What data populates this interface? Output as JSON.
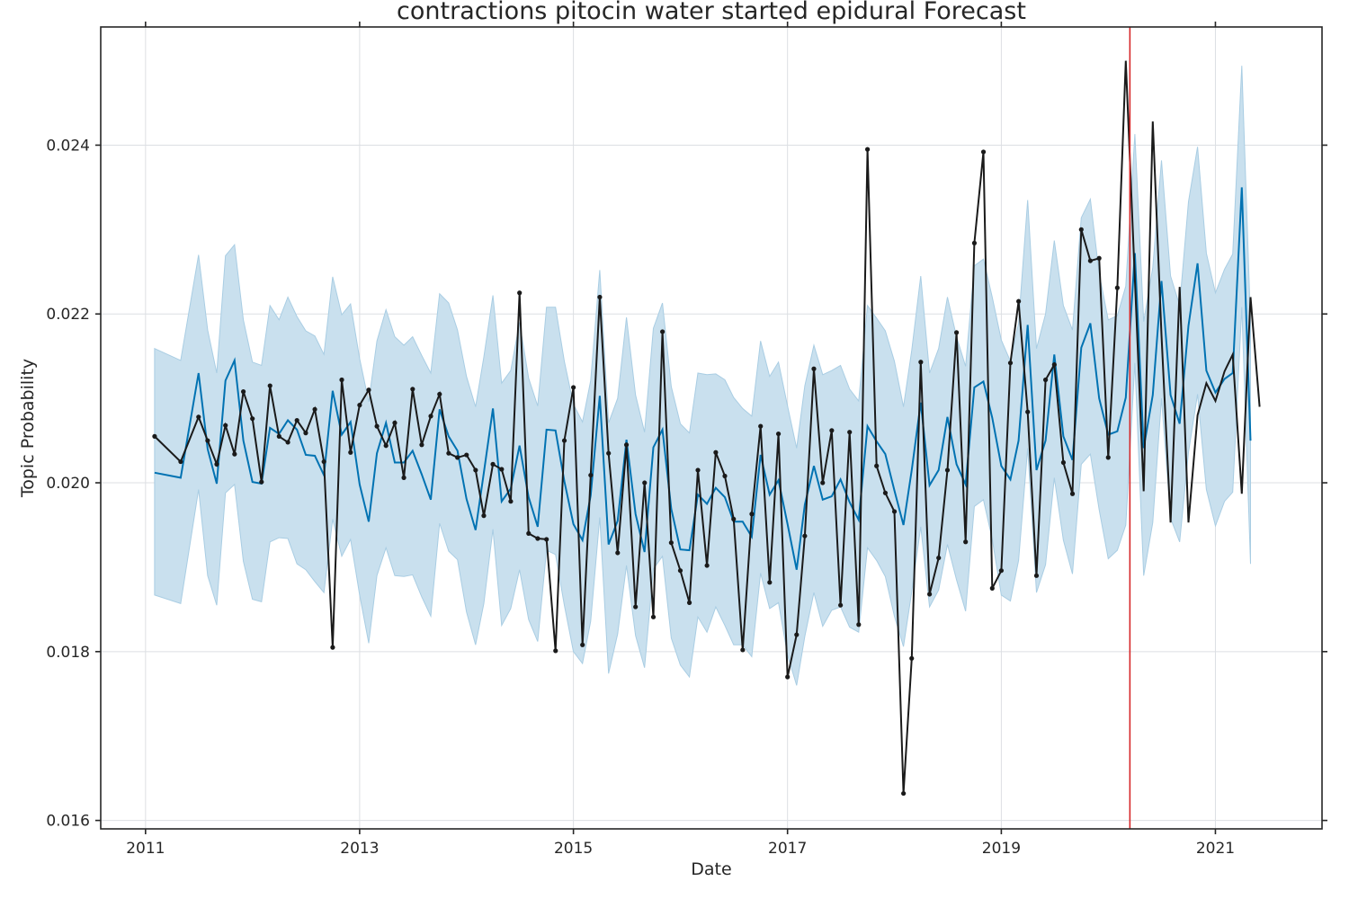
{
  "chart_data": {
    "type": "line",
    "title": "contractions pitocin water started epidural Forecast",
    "xlabel": "Date",
    "ylabel": "Topic Probability",
    "xlim": [
      "2010-08-01",
      "2021-12-31"
    ],
    "ylim": [
      0.0159,
      0.0254
    ],
    "x_ticks": [
      "2011",
      "2013",
      "2015",
      "2017",
      "2019",
      "2021"
    ],
    "y_ticks": [
      "0.016",
      "0.018",
      "0.020",
      "0.022",
      "0.024"
    ],
    "y_tick_values": [
      0.016,
      0.018,
      0.02,
      0.022,
      0.024
    ],
    "grid": true,
    "cutoff_date": "2020-03-15",
    "colors": {
      "actual": "#1a1a1a",
      "forecast": "#0072b2",
      "band": "#c9e0ee",
      "band_edge": "#a9cde3",
      "cutoff": "#d62728"
    },
    "actual": {
      "name": "actual",
      "x": [
        "2011-02-01",
        "2011-05-01",
        "2011-07-01",
        "2011-08-01",
        "2011-09-01",
        "2011-10-01",
        "2011-11-01",
        "2011-12-01",
        "2012-01-01",
        "2012-02-01",
        "2012-03-01",
        "2012-04-01",
        "2012-05-01",
        "2012-06-01",
        "2012-07-01",
        "2012-08-01",
        "2012-09-01",
        "2012-10-01",
        "2012-11-01",
        "2012-12-01",
        "2013-01-01",
        "2013-02-01",
        "2013-03-01",
        "2013-04-01",
        "2013-05-01",
        "2013-06-01",
        "2013-07-01",
        "2013-08-01",
        "2013-09-01",
        "2013-10-01",
        "2013-11-01",
        "2013-12-01",
        "2014-01-01",
        "2014-02-01",
        "2014-03-01",
        "2014-04-01",
        "2014-05-01",
        "2014-06-01",
        "2014-07-01",
        "2014-08-01",
        "2014-09-01",
        "2014-10-01",
        "2014-11-01",
        "2014-12-01",
        "2015-01-01",
        "2015-02-01",
        "2015-03-01",
        "2015-04-01",
        "2015-05-01",
        "2015-06-01",
        "2015-07-01",
        "2015-08-01",
        "2015-09-01",
        "2015-10-01",
        "2015-11-01",
        "2015-12-01",
        "2016-01-01",
        "2016-02-01",
        "2016-03-01",
        "2016-04-01",
        "2016-05-01",
        "2016-06-01",
        "2016-07-01",
        "2016-08-01",
        "2016-09-01",
        "2016-10-01",
        "2016-11-01",
        "2016-12-01",
        "2017-01-01",
        "2017-02-01",
        "2017-03-01",
        "2017-04-01",
        "2017-05-01",
        "2017-06-01",
        "2017-07-01",
        "2017-08-01",
        "2017-09-01",
        "2017-10-01",
        "2017-11-01",
        "2017-12-01",
        "2018-01-01",
        "2018-02-01",
        "2018-03-01",
        "2018-04-01",
        "2018-05-01",
        "2018-06-01",
        "2018-07-01",
        "2018-08-01",
        "2018-09-01",
        "2018-10-01",
        "2018-11-01",
        "2018-12-01",
        "2019-01-01",
        "2019-02-01",
        "2019-03-01",
        "2019-04-01",
        "2019-05-01",
        "2019-06-01",
        "2019-07-01",
        "2019-08-01",
        "2019-09-01",
        "2019-10-01",
        "2019-11-01",
        "2019-12-01",
        "2020-01-01",
        "2020-02-01"
      ],
      "values": [
        0.02055,
        0.02025,
        0.02078,
        0.0205,
        0.02022,
        0.02068,
        0.02034,
        0.02108,
        0.02076,
        0.02001,
        0.02115,
        0.02055,
        0.02048,
        0.02074,
        0.02059,
        0.02087,
        0.02025,
        0.01805,
        0.02122,
        0.02036,
        0.02092,
        0.0211,
        0.02067,
        0.02044,
        0.02071,
        0.02006,
        0.02111,
        0.02045,
        0.02079,
        0.02105,
        0.02035,
        0.0203,
        0.02033,
        0.02015,
        0.01961,
        0.02022,
        0.02016,
        0.01978,
        0.02225,
        0.0194,
        0.01934,
        0.01933,
        0.01801,
        0.0205,
        0.02113,
        0.01808,
        0.02009,
        0.0222,
        0.02035,
        0.01917,
        0.02045,
        0.01853,
        0.02,
        0.01841,
        0.02179,
        0.01929,
        0.01896,
        0.01858,
        0.02015,
        0.01902,
        0.02036,
        0.02008,
        0.01957,
        0.01802,
        0.01963,
        0.02067,
        0.01882,
        0.02058,
        0.0177,
        0.0182,
        0.01937,
        0.02135,
        0.02,
        0.02062,
        0.01855,
        0.0206,
        0.01832,
        0.02395,
        0.0202,
        0.01988,
        0.01966,
        0.01632,
        0.01792,
        0.02143,
        0.01868,
        0.01911,
        0.02015,
        0.02178,
        0.0193,
        0.02284,
        0.02392,
        0.01875,
        0.01896,
        0.02142,
        0.02215,
        0.02084,
        0.0189,
        0.02122,
        0.0214,
        0.02024,
        0.01987,
        0.023,
        0.02263,
        0.02266,
        0.0203,
        0.02231
      ]
    },
    "actual_tail": {
      "name": "actual",
      "x": [
        "2020-03-01",
        "2020-05-01",
        "2020-06-01",
        "2020-07-01",
        "2020-08-01",
        "2020-09-01",
        "2020-10-01",
        "2020-11-01",
        "2020-12-01",
        "2021-01-01",
        "2021-02-01",
        "2021-03-01",
        "2021-04-01",
        "2021-05-01",
        "2021-06-01"
      ],
      "values": [
        0.025,
        0.0199,
        0.02428,
        0.02175,
        0.01953,
        0.02232,
        0.01953,
        0.0208,
        0.02118,
        0.02097,
        0.02132,
        0.02152,
        0.01987,
        0.0222,
        0.0209
      ]
    },
    "forecast": {
      "name": "forecast",
      "x": [
        "2011-02-01",
        "2011-05-01",
        "2011-07-01",
        "2011-08-01",
        "2011-09-01",
        "2011-10-01",
        "2011-11-01",
        "2011-12-01",
        "2012-01-01",
        "2012-02-01",
        "2012-03-01",
        "2012-04-01",
        "2012-05-01",
        "2012-06-01",
        "2012-07-01",
        "2012-08-01",
        "2012-09-01",
        "2012-10-01",
        "2012-11-01",
        "2012-12-01",
        "2013-01-01",
        "2013-02-01",
        "2013-03-01",
        "2013-04-01",
        "2013-05-01",
        "2013-06-01",
        "2013-07-01",
        "2013-08-01",
        "2013-09-01",
        "2013-10-01",
        "2013-11-01",
        "2013-12-01",
        "2014-01-01",
        "2014-02-01",
        "2014-03-01",
        "2014-04-01",
        "2014-05-01",
        "2014-06-01",
        "2014-07-01",
        "2014-08-01",
        "2014-09-01",
        "2014-10-01",
        "2014-11-01",
        "2014-12-01",
        "2015-01-01",
        "2015-02-01",
        "2015-03-01",
        "2015-04-01",
        "2015-05-01",
        "2015-06-01",
        "2015-07-01",
        "2015-08-01",
        "2015-09-01",
        "2015-10-01",
        "2015-11-01",
        "2015-12-01",
        "2016-01-01",
        "2016-02-01",
        "2016-03-01",
        "2016-04-01",
        "2016-05-01",
        "2016-06-01",
        "2016-07-01",
        "2016-08-01",
        "2016-09-01",
        "2016-10-01",
        "2016-11-01",
        "2016-12-01",
        "2017-01-01",
        "2017-02-01",
        "2017-03-01",
        "2017-04-01",
        "2017-05-01",
        "2017-06-01",
        "2017-07-01",
        "2017-08-01",
        "2017-09-01",
        "2017-10-01",
        "2017-11-01",
        "2017-12-01",
        "2018-01-01",
        "2018-02-01",
        "2018-03-01",
        "2018-04-01",
        "2018-05-01",
        "2018-06-01",
        "2018-07-01",
        "2018-08-01",
        "2018-09-01",
        "2018-10-01",
        "2018-11-01",
        "2018-12-01",
        "2019-01-01",
        "2019-02-01",
        "2019-03-01",
        "2019-04-01",
        "2019-05-01",
        "2019-06-01",
        "2019-07-01",
        "2019-08-01",
        "2019-09-01",
        "2019-10-01",
        "2019-11-01",
        "2019-12-01",
        "2020-01-01",
        "2020-02-01",
        "2020-03-01",
        "2020-04-01",
        "2020-05-01",
        "2020-06-01",
        "2020-07-01",
        "2020-08-01",
        "2020-09-01",
        "2020-10-01",
        "2020-11-01",
        "2020-12-01",
        "2021-01-01",
        "2021-02-01",
        "2021-03-01",
        "2021-04-01",
        "2021-05-01"
      ],
      "values": [
        0.02012,
        0.02006,
        0.0213,
        0.0204,
        0.01999,
        0.02121,
        0.02145,
        0.0205,
        0.02001,
        0.01999,
        0.02065,
        0.02058,
        0.02074,
        0.02063,
        0.02033,
        0.02032,
        0.02009,
        0.02109,
        0.02057,
        0.02072,
        0.01998,
        0.01954,
        0.02035,
        0.02071,
        0.02024,
        0.02024,
        0.02038,
        0.0201,
        0.0198,
        0.02087,
        0.02055,
        0.02038,
        0.01981,
        0.01944,
        0.02012,
        0.02088,
        0.01978,
        0.01993,
        0.02044,
        0.01983,
        0.01948,
        0.02063,
        0.02062,
        0.02002,
        0.01951,
        0.01932,
        0.01985,
        0.02103,
        0.01927,
        0.01955,
        0.02051,
        0.01963,
        0.01918,
        0.02042,
        0.02063,
        0.01969,
        0.01921,
        0.0192,
        0.01986,
        0.01975,
        0.01994,
        0.01983,
        0.01954,
        0.01954,
        0.01936,
        0.02033,
        0.01986,
        0.02003,
        0.01951,
        0.01897,
        0.01974,
        0.0202,
        0.0198,
        0.01984,
        0.02004,
        0.01977,
        0.01956,
        0.02067,
        0.02049,
        0.02034,
        0.01991,
        0.0195,
        0.02015,
        0.02095,
        0.01997,
        0.02015,
        0.02078,
        0.02022,
        0.01998,
        0.02113,
        0.0212,
        0.02077,
        0.0202,
        0.02004,
        0.0205,
        0.02187,
        0.02015,
        0.0205,
        0.02152,
        0.02055,
        0.02027,
        0.0216,
        0.02189,
        0.021,
        0.02057,
        0.02061,
        0.02101,
        0.02272,
        0.02041,
        0.02104,
        0.02239,
        0.02104,
        0.0207,
        0.02186,
        0.0226,
        0.02133,
        0.02107,
        0.02123,
        0.0213,
        0.0235,
        0.0205
      ]
    },
    "band_lower": [
      0.01867,
      0.01857,
      0.01992,
      0.0189,
      0.01855,
      0.01988,
      0.01998,
      0.01907,
      0.01862,
      0.01859,
      0.0193,
      0.01935,
      0.01934,
      0.01904,
      0.01897,
      0.01883,
      0.0187,
      0.01957,
      0.01913,
      0.01933,
      0.01867,
      0.0181,
      0.0189,
      0.01923,
      0.0189,
      0.01889,
      0.01891,
      0.01865,
      0.01842,
      0.01952,
      0.01919,
      0.01909,
      0.01847,
      0.01808,
      0.01857,
      0.01945,
      0.01831,
      0.01851,
      0.01897,
      0.01838,
      0.01812,
      0.0192,
      0.01915,
      0.01855,
      0.018,
      0.01786,
      0.01836,
      0.01959,
      0.01774,
      0.01821,
      0.01902,
      0.01819,
      0.01781,
      0.01898,
      0.01913,
      0.01816,
      0.01784,
      0.0177,
      0.01841,
      0.01823,
      0.01853,
      0.01831,
      0.01808,
      0.01808,
      0.01794,
      0.01893,
      0.01851,
      0.01858,
      0.01796,
      0.0176,
      0.01818,
      0.0187,
      0.0183,
      0.01849,
      0.01853,
      0.01829,
      0.01823,
      0.01923,
      0.01908,
      0.01889,
      0.01842,
      0.01806,
      0.01871,
      0.01948,
      0.01853,
      0.01873,
      0.01927,
      0.01885,
      0.01848,
      0.01972,
      0.0198,
      0.01933,
      0.01867,
      0.0186,
      0.01908,
      0.02041,
      0.0187,
      0.01903,
      0.02006,
      0.01932,
      0.01892,
      0.02022,
      0.02034,
      0.01968,
      0.0191,
      0.0192,
      0.0195,
      0.02142,
      0.0189,
      0.01953,
      0.021,
      0.01958,
      0.0193,
      0.02036,
      0.02105,
      0.01992,
      0.01949,
      0.01978,
      0.01989,
      0.02208,
      0.01904
    ],
    "band_upper": [
      0.02159,
      0.02145,
      0.0227,
      0.02181,
      0.0213,
      0.02269,
      0.02282,
      0.02193,
      0.02143,
      0.02139,
      0.0221,
      0.02193,
      0.0222,
      0.02197,
      0.0218,
      0.02174,
      0.02152,
      0.02244,
      0.02199,
      0.02212,
      0.02147,
      0.02096,
      0.02168,
      0.02205,
      0.02173,
      0.02163,
      0.02173,
      0.02151,
      0.0213,
      0.02224,
      0.02213,
      0.02181,
      0.02126,
      0.0209,
      0.02149,
      0.02222,
      0.02118,
      0.02133,
      0.0219,
      0.02124,
      0.02091,
      0.02208,
      0.02208,
      0.02144,
      0.02093,
      0.02072,
      0.02121,
      0.02252,
      0.02071,
      0.021,
      0.02196,
      0.02104,
      0.0206,
      0.02183,
      0.02213,
      0.02114,
      0.0207,
      0.02059,
      0.0213,
      0.02128,
      0.02129,
      0.02122,
      0.02101,
      0.02088,
      0.02079,
      0.02168,
      0.02126,
      0.02143,
      0.02091,
      0.02041,
      0.02115,
      0.02163,
      0.02128,
      0.02133,
      0.02139,
      0.02111,
      0.02097,
      0.0221,
      0.02195,
      0.0218,
      0.02144,
      0.0209,
      0.02157,
      0.02245,
      0.0213,
      0.02159,
      0.0222,
      0.02173,
      0.02138,
      0.02257,
      0.02265,
      0.0222,
      0.02169,
      0.02144,
      0.02189,
      0.02335,
      0.02159,
      0.022,
      0.02287,
      0.0221,
      0.02181,
      0.02314,
      0.02336,
      0.02248,
      0.02193,
      0.02198,
      0.02233,
      0.02413,
      0.02191,
      0.02255,
      0.02382,
      0.02245,
      0.0221,
      0.02333,
      0.02398,
      0.02272,
      0.02225,
      0.02253,
      0.02271,
      0.02494,
      0.0219
    ]
  }
}
